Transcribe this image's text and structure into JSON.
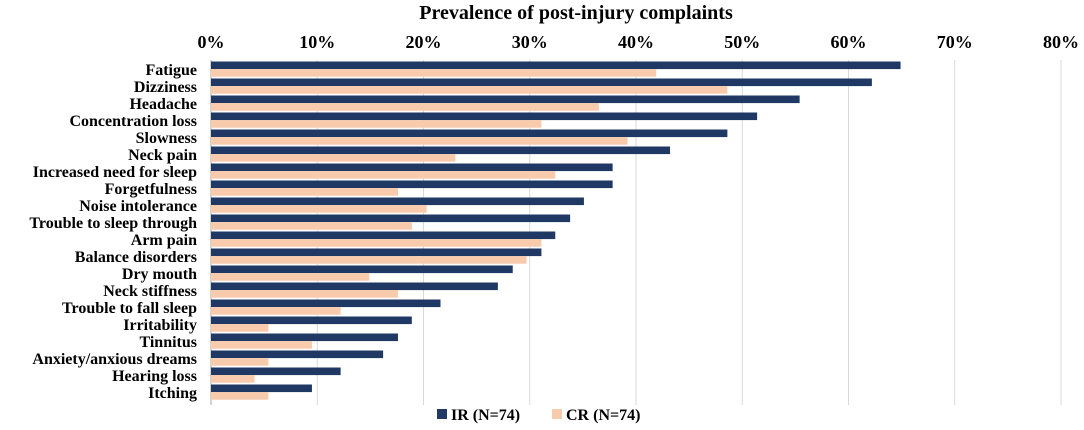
{
  "chart_data": {
    "type": "bar",
    "orientation": "horizontal",
    "title": "Prevalence of post-injury complaints",
    "xlim": [
      0,
      80
    ],
    "ticks": [
      "0%",
      "10%",
      "20%",
      "30%",
      "40%",
      "50%",
      "60%",
      "70%",
      "80%"
    ],
    "grid": true,
    "legend_position": "bottom",
    "categories": [
      "Fatigue",
      "Dizziness",
      "Headache",
      "Concentration loss",
      "Slowness",
      "Neck pain",
      "Increased need for sleep",
      "Forgetfulness",
      "Noise intolerance",
      "Trouble to sleep through",
      "Arm pain",
      "Balance disorders",
      "Dry mouth",
      "Neck stiffness",
      "Trouble to fall sleep",
      "Irritability",
      "Tinnitus",
      "Anxiety/anxious dreams",
      "Hearing loss",
      "Itching"
    ],
    "series": [
      {
        "name": "IR (N=74)",
        "color": "#203864",
        "values": [
          64.9,
          62.2,
          55.4,
          51.4,
          48.6,
          43.2,
          37.8,
          37.8,
          35.1,
          33.8,
          32.4,
          31.1,
          28.4,
          27.0,
          21.6,
          18.9,
          17.6,
          16.2,
          12.2,
          9.5
        ]
      },
      {
        "name": "CR (N=74)",
        "color": "#f8cbad",
        "values": [
          41.9,
          48.6,
          36.5,
          31.1,
          39.2,
          23.0,
          32.4,
          17.6,
          20.3,
          18.9,
          31.1,
          29.7,
          14.9,
          17.6,
          12.2,
          5.4,
          9.5,
          5.4,
          4.1,
          5.4
        ]
      }
    ]
  }
}
